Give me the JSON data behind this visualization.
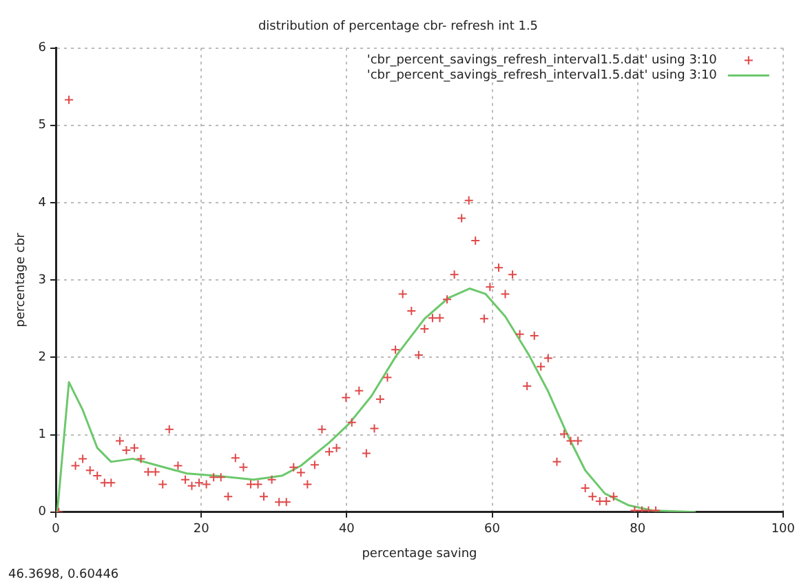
{
  "chart_data": {
    "type": "scatter",
    "title": "distribution of percentage cbr- refresh int 1.5",
    "xlabel": "percentage saving",
    "ylabel": "percentage cbr",
    "xlim": [
      0,
      100
    ],
    "xticks": [
      0,
      20,
      40,
      60,
      80,
      100
    ],
    "ylim": [
      0,
      6
    ],
    "yticks": [
      0,
      1,
      2,
      3,
      4,
      5,
      6
    ],
    "grid": true,
    "legend": "top right",
    "annotations": [
      "46.3698, 0.60446"
    ],
    "series": [
      {
        "name": "'cbr_percent_savings_refresh_interval1.5.dat' using 3:10",
        "marker": "cross",
        "color": "#e04848",
        "x": [
          0.4,
          1.8,
          2.7,
          3.7,
          4.7,
          5.7,
          6.7,
          7.6,
          8.8,
          9.7,
          10.8,
          11.7,
          12.7,
          13.7,
          14.7,
          15.6,
          16.8,
          17.8,
          18.7,
          19.7,
          20.7,
          21.7,
          22.7,
          23.7,
          24.7,
          25.8,
          26.8,
          27.8,
          28.6,
          29.7,
          30.7,
          31.7,
          32.7,
          33.7,
          34.6,
          35.6,
          36.6,
          37.6,
          38.6,
          39.9,
          40.7,
          41.7,
          42.7,
          43.8,
          44.6,
          45.6,
          46.7,
          47.7,
          48.9,
          49.9,
          50.7,
          51.8,
          52.8,
          53.8,
          54.8,
          55.8,
          56.8,
          57.7,
          58.9,
          59.7,
          60.9,
          61.8,
          62.8,
          63.8,
          64.8,
          65.8,
          66.7,
          67.7,
          68.9,
          69.9,
          70.8,
          71.8,
          72.8,
          73.8,
          74.8,
          75.7,
          76.7,
          79.6,
          80.6,
          81.5,
          82.5
        ],
        "values": [
          0,
          5.33,
          0.6,
          0.69,
          0.54,
          0.47,
          0.38,
          0.38,
          0.92,
          0.8,
          0.83,
          0.69,
          0.52,
          0.52,
          0.36,
          1.07,
          0.6,
          0.42,
          0.34,
          0.38,
          0.36,
          0.45,
          0.45,
          0.2,
          0.7,
          0.58,
          0.36,
          0.36,
          0.2,
          0.42,
          0.13,
          0.13,
          0.58,
          0.51,
          0.36,
          0.61,
          1.07,
          0.78,
          0.83,
          1.48,
          1.16,
          1.57,
          0.76,
          1.08,
          1.46,
          1.74,
          2.1,
          2.82,
          2.6,
          2.03,
          2.37,
          2.51,
          2.51,
          2.75,
          3.07,
          3.8,
          4.03,
          3.51,
          2.5,
          2.91,
          3.16,
          2.82,
          3.07,
          2.3,
          1.63,
          2.28,
          1.88,
          1.99,
          0.65,
          1.01,
          0.92,
          0.92,
          0.31,
          0.2,
          0.14,
          0.14,
          0.2,
          0.02,
          0.02,
          0.02,
          0.02
        ]
      },
      {
        "name": "'cbr_percent_savings_refresh_interval1.5.dat' using 3:10",
        "type": "line",
        "marker": "none",
        "line_style": "solid",
        "color": "#6cc86c",
        "x": [
          0.2,
          1.8,
          3.7,
          5.7,
          7.6,
          10.6,
          14.1,
          18,
          21.9,
          27.2,
          31.1,
          33.7,
          37.6,
          40.3,
          43.4,
          46.8,
          50.7,
          54,
          56.9,
          59.1,
          61.8,
          65,
          67.7,
          70.3,
          72.8,
          75.5,
          78.7,
          82,
          88
        ],
        "values": [
          0,
          1.68,
          1.32,
          0.83,
          0.65,
          0.69,
          0.6,
          0.5,
          0.47,
          0.42,
          0.47,
          0.6,
          0.9,
          1.14,
          1.5,
          2.02,
          2.5,
          2.77,
          2.89,
          2.82,
          2.53,
          2.04,
          1.56,
          1.01,
          0.54,
          0.24,
          0.09,
          0.02,
          0
        ]
      }
    ]
  }
}
